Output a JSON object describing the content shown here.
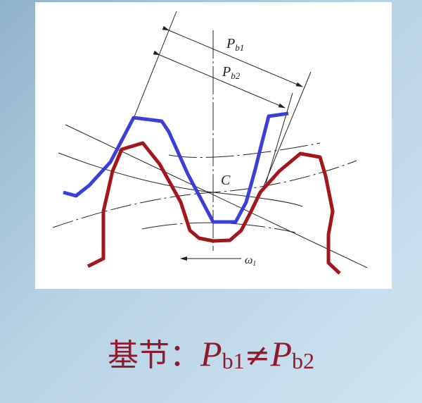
{
  "diagram": {
    "labels": {
      "pb1_main": "P",
      "pb1_sub": "b1",
      "pb2_main": "P",
      "pb2_sub": "b2",
      "point_c": "C",
      "omega_main": "ω",
      "omega_sub": "1"
    },
    "colors": {
      "gear1": "#3b3fd6",
      "gear2": "#a3161b",
      "lines": "#222222"
    }
  },
  "caption": {
    "prefix": "基节：",
    "p1": "P",
    "sub1": "b1",
    "neq": "≠",
    "p2": "P",
    "sub2": "b2"
  }
}
